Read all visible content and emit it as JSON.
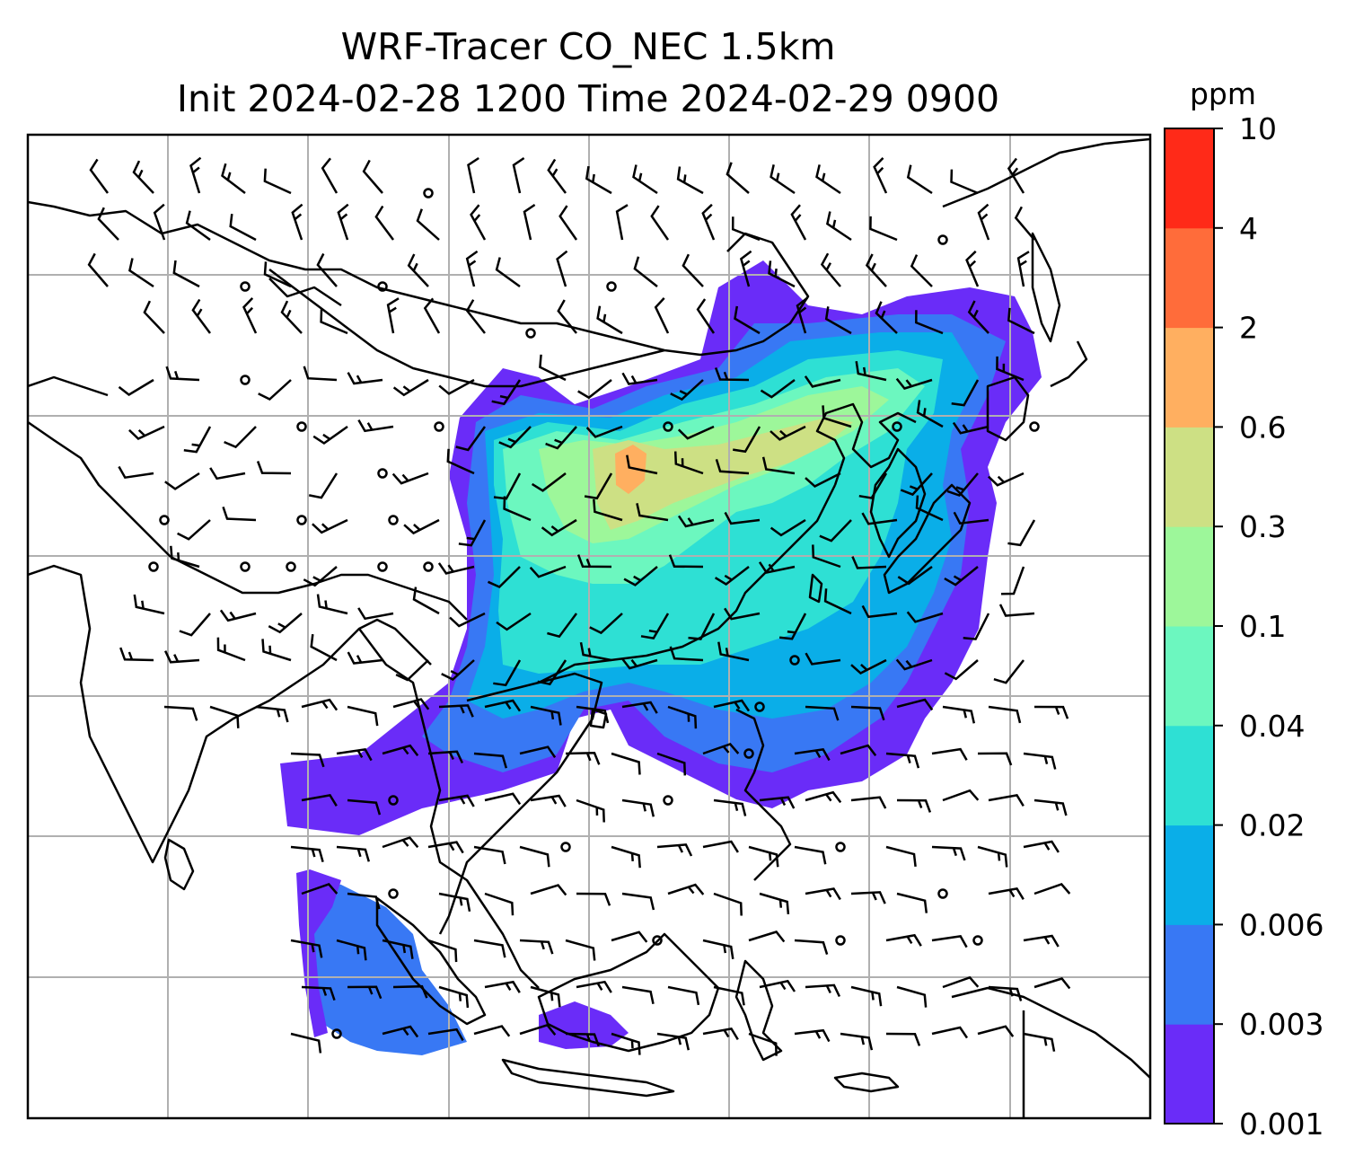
{
  "title": {
    "line1": "WRF-Tracer CO_NEC 1.5km",
    "line2": "Init 2024-02-28 1200 Time 2024-02-29 0900"
  },
  "colorbar": {
    "unit": "ppm",
    "levels": [
      "0.001",
      "0.003",
      "0.006",
      "0.02",
      "0.04",
      "0.1",
      "0.3",
      "0.6",
      "2",
      "4",
      "10"
    ],
    "colors": [
      "#6a2cf8",
      "#3878f4",
      "#0aaee8",
      "#2ee0d4",
      "#6cf7bf",
      "#9df79a",
      "#cde084",
      "#ffaf60",
      "#ff6c3a",
      "#ff2a18"
    ]
  },
  "map": {
    "grid": "on",
    "land_outline_color": "#000000",
    "grid_color": "#b0b0b0",
    "wind_barbs": "black"
  }
}
